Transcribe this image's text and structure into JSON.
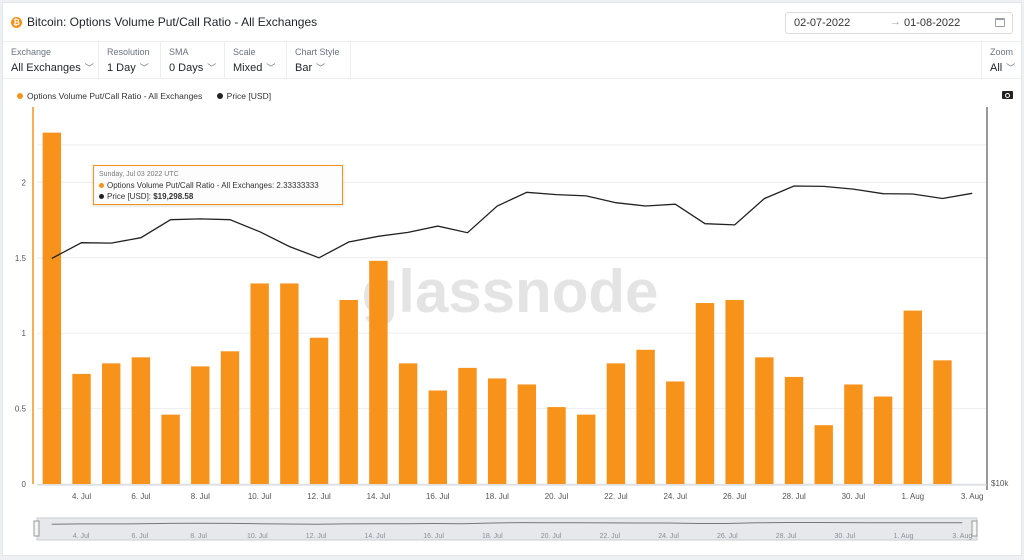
{
  "header": {
    "title": "Bitcoin: Options Volume Put/Call Ratio - All Exchanges",
    "date_from": "02-07-2022",
    "date_arrow": "→",
    "date_to": "01-08-2022",
    "coin_icon": "bitcoin-icon",
    "calendar_icon": "calendar-icon"
  },
  "controls": [
    {
      "label": "Exchange",
      "value": "All Exchanges"
    },
    {
      "label": "Resolution",
      "value": "1 Day"
    },
    {
      "label": "SMA",
      "value": "0 Days"
    },
    {
      "label": "Scale",
      "value": "Mixed"
    },
    {
      "label": "Chart Style",
      "value": "Bar"
    }
  ],
  "zoom": {
    "label": "Zoom",
    "value": "All"
  },
  "legend": {
    "ratio": "Options Volume Put/Call Ratio - All Exchanges",
    "price": "Price [USD]"
  },
  "watermark": "glassnode",
  "tooltip": {
    "date": "Sunday, Jul 03 2022 UTC",
    "ratio_label": "Options Volume Put/Call Ratio - All Exchanges: ",
    "ratio_value": "2.33333333",
    "price_label": "Price [USD]: ",
    "price_value": "$19,298.58"
  },
  "colors": {
    "bar": "#f7931a",
    "price": "#222222",
    "grid": "#ebedf0"
  },
  "chart_data": {
    "type": "bar",
    "categories": [
      "3. Jul",
      "4. Jul",
      "5. Jul",
      "6. Jul",
      "7. Jul",
      "8. Jul",
      "9. Jul",
      "10. Jul",
      "11. Jul",
      "12. Jul",
      "13. Jul",
      "14. Jul",
      "15. Jul",
      "16. Jul",
      "17. Jul",
      "18. Jul",
      "19. Jul",
      "20. Jul",
      "21. Jul",
      "22. Jul",
      "23. Jul",
      "24. Jul",
      "25. Jul",
      "26. Jul",
      "27. Jul",
      "28. Jul",
      "29. Jul",
      "30. Jul",
      "31. Jul",
      "1. Aug",
      "2. Aug",
      "3. Aug"
    ],
    "series": [
      {
        "name": "Options Volume Put/Call Ratio - All Exchanges",
        "type": "bar",
        "axis": "left",
        "values": [
          2.33,
          0.73,
          0.8,
          0.84,
          0.46,
          0.78,
          0.88,
          1.33,
          1.33,
          0.97,
          1.22,
          1.48,
          0.8,
          0.62,
          0.77,
          0.7,
          0.66,
          0.51,
          0.46,
          0.8,
          0.89,
          0.68,
          1.2,
          1.22,
          0.84,
          0.71,
          0.39,
          0.66,
          0.58,
          1.15,
          0.82,
          null
        ]
      },
      {
        "name": "Price [USD]",
        "type": "line",
        "axis": "right",
        "values": [
          19298.58,
          20200,
          20180,
          20500,
          21600,
          21650,
          21600,
          20860,
          19980,
          19330,
          20240,
          20580,
          20820,
          21200,
          20800,
          22480,
          23400,
          23240,
          23150,
          22700,
          22480,
          22600,
          21350,
          21280,
          22970,
          23830,
          23800,
          23620,
          23300,
          23280,
          22980,
          23330
        ]
      }
    ],
    "x_tick_labels": [
      "4. Jul",
      "6. Jul",
      "8. Jul",
      "10. Jul",
      "12. Jul",
      "14. Jul",
      "16. Jul",
      "18. Jul",
      "20. Jul",
      "22. Jul",
      "24. Jul",
      "26. Jul",
      "28. Jul",
      "30. Jul",
      "1. Aug",
      "3. Aug"
    ],
    "y_ticks": [
      0,
      0.5,
      1,
      1.5,
      2
    ],
    "y_tick_labels": [
      "0",
      "0.5",
      "1",
      "1.5",
      "2"
    ],
    "ylim": [
      0,
      2.5
    ],
    "y2_label": "$10k",
    "y2_scale": "log",
    "y2_range": [
      10000,
      30000
    ],
    "grid": true,
    "legend_position": "top-left",
    "navigator_labels": [
      "4. Jul",
      "6. Jul",
      "8. Jul",
      "10. Jul",
      "12. Jul",
      "14. Jul",
      "16. Jul",
      "18. Jul",
      "20. Jul",
      "22. Jul",
      "24. Jul",
      "26. Jul",
      "28. Jul",
      "30. Jul",
      "1. Aug",
      "3. Aug"
    ]
  }
}
